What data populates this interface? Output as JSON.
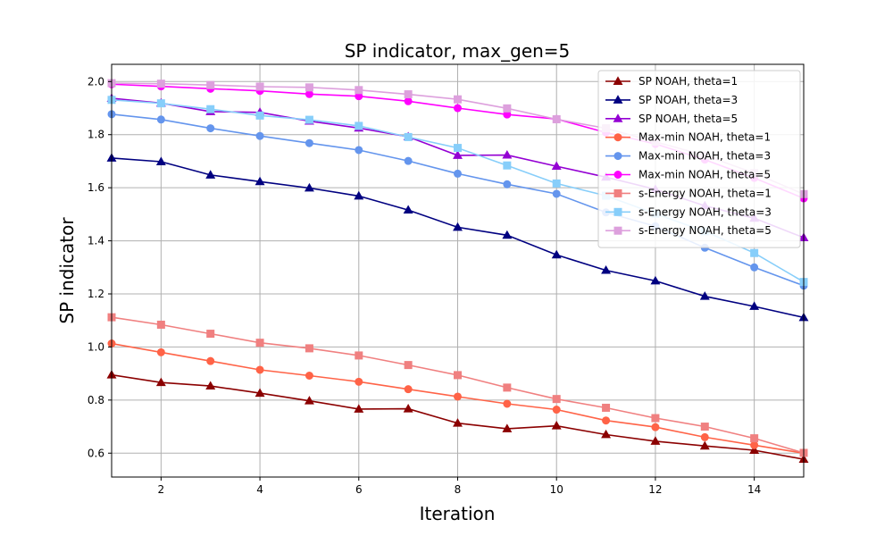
{
  "chart_data": {
    "type": "line",
    "title": "SP indicator, max_gen=5",
    "xlabel": "Iteration",
    "ylabel": "SP indicator",
    "xlim": [
      1,
      15
    ],
    "ylim": [
      0.51,
      2.065
    ],
    "xticks": [
      2,
      4,
      6,
      8,
      10,
      12,
      14
    ],
    "yticks": [
      0.6,
      0.8,
      1.0,
      1.2,
      1.4,
      1.6,
      1.8,
      2.0
    ],
    "xtick_labels": [
      "2",
      "4",
      "6",
      "8",
      "10",
      "12",
      "14"
    ],
    "ytick_labels": [
      "0.6",
      "0.8",
      "1.0",
      "1.2",
      "1.4",
      "1.6",
      "1.8",
      "2.0"
    ],
    "grid": true,
    "legend_position": "top-right",
    "x": [
      1,
      2,
      3,
      4,
      5,
      6,
      7,
      8,
      9,
      10,
      11,
      12,
      13,
      14,
      15
    ],
    "series": [
      {
        "name": "SP NOAH, theta=1",
        "color": "#8b0000",
        "marker": "triangle",
        "values": [
          0.895,
          0.866,
          0.853,
          0.826,
          0.797,
          0.766,
          0.767,
          0.713,
          0.692,
          0.703,
          0.67,
          0.645,
          0.627,
          0.611,
          0.577
        ]
      },
      {
        "name": "SP NOAH, theta=3",
        "color": "#000080",
        "marker": "triangle",
        "values": [
          1.712,
          1.698,
          1.648,
          1.623,
          1.599,
          1.569,
          1.516,
          1.451,
          1.421,
          1.347,
          1.289,
          1.249,
          1.191,
          1.153,
          1.111
        ]
      },
      {
        "name": "SP NOAH, theta=5",
        "color": "#9400d3",
        "marker": "triangle",
        "values": [
          1.937,
          1.919,
          1.887,
          1.884,
          1.851,
          1.825,
          1.792,
          1.722,
          1.723,
          1.681,
          1.64,
          1.594,
          1.532,
          1.485,
          1.412
        ]
      },
      {
        "name": "Max-min NOAH, theta=1",
        "color": "#ff6347",
        "marker": "circle",
        "values": [
          1.013,
          0.98,
          0.947,
          0.914,
          0.892,
          0.869,
          0.841,
          0.813,
          0.786,
          0.764,
          0.723,
          0.698,
          0.66,
          0.63,
          0.6
        ]
      },
      {
        "name": "Max-min NOAH, theta=3",
        "color": "#6495ed",
        "marker": "circle",
        "values": [
          1.877,
          1.857,
          1.824,
          1.795,
          1.768,
          1.742,
          1.701,
          1.653,
          1.613,
          1.577,
          1.507,
          1.455,
          1.374,
          1.3,
          1.231
        ]
      },
      {
        "name": "Max-min NOAH, theta=5",
        "color": "#ff00ff",
        "marker": "circle",
        "values": [
          1.99,
          1.982,
          1.973,
          1.965,
          1.953,
          1.945,
          1.926,
          1.9,
          1.876,
          1.859,
          1.808,
          1.765,
          1.706,
          1.637,
          1.56
        ]
      },
      {
        "name": "s-Energy NOAH, theta=1",
        "color": "#f08080",
        "marker": "square",
        "values": [
          1.112,
          1.084,
          1.05,
          1.016,
          0.995,
          0.968,
          0.932,
          0.894,
          0.847,
          0.804,
          0.771,
          0.732,
          0.7,
          0.656,
          0.601
        ]
      },
      {
        "name": "s-Energy NOAH, theta=3",
        "color": "#87cefa",
        "marker": "square",
        "values": [
          1.931,
          1.918,
          1.896,
          1.872,
          1.856,
          1.833,
          1.791,
          1.75,
          1.684,
          1.616,
          1.57,
          1.502,
          1.436,
          1.354,
          1.245
        ]
      },
      {
        "name": "s-Energy NOAH, theta=5",
        "color": "#dda0dd",
        "marker": "square",
        "values": [
          1.994,
          1.992,
          1.987,
          1.981,
          1.978,
          1.968,
          1.952,
          1.933,
          1.899,
          1.858,
          1.824,
          1.773,
          1.722,
          1.655,
          1.576
        ]
      }
    ]
  }
}
